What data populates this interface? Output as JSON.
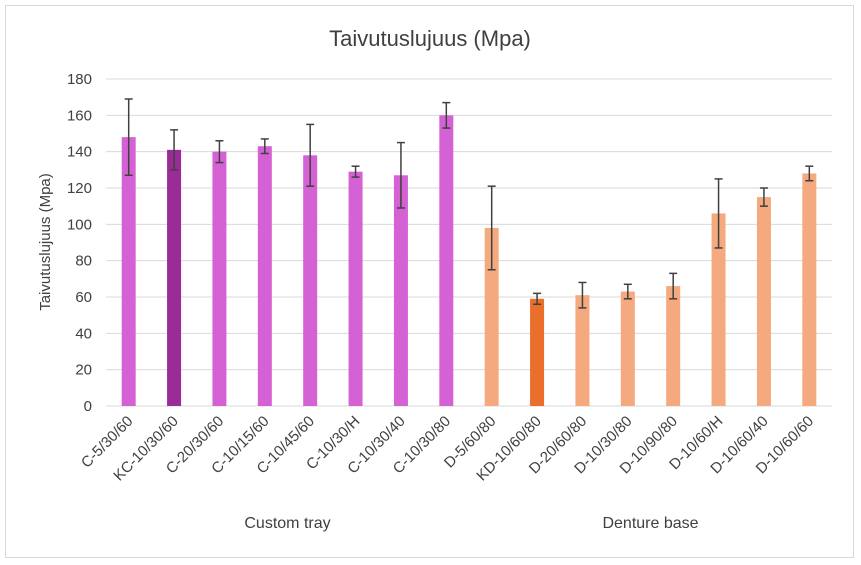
{
  "chart_data": {
    "type": "bar",
    "title": "Taivutuslujuus (Mpa)",
    "ylabel": "Taivutuslujuus (Mpa)",
    "xlabel": "",
    "ylim": [
      0,
      180
    ],
    "yticks": [
      0,
      20,
      40,
      60,
      80,
      100,
      120,
      140,
      160,
      180
    ],
    "grid": true,
    "categories": [
      "C-5/30/60",
      "KC-10/30/60",
      "C-20/30/60",
      "C-10/15/60",
      "C-10/45/60",
      "C-10/30/H",
      "C-10/30/40",
      "C-10/30/80",
      "D-5/60/80",
      "KD-10/60/80",
      "D-20/60/80",
      "D-10/30/80",
      "D-10/90/80",
      "D-10/60/H",
      "D-10/60/40",
      "D-10/60/60"
    ],
    "values": [
      148,
      141,
      140,
      143,
      138,
      129,
      127,
      160,
      98,
      59,
      61,
      63,
      66,
      106,
      115,
      128
    ],
    "error": [
      21,
      11,
      6,
      4,
      17,
      3,
      18,
      7,
      23,
      3,
      7,
      4,
      7,
      19,
      5,
      4
    ],
    "groups": [
      {
        "label": "Custom tray",
        "count": 8
      },
      {
        "label": "Denture base",
        "count": 8
      }
    ],
    "colors": [
      "#d462d4",
      "#9b2b96",
      "#d462d4",
      "#d462d4",
      "#d462d4",
      "#d462d4",
      "#d462d4",
      "#d462d4",
      "#f4a97f",
      "#ea6f2a",
      "#f4a97f",
      "#f4a97f",
      "#f4a97f",
      "#f4a97f",
      "#f4a97f",
      "#f4a97f"
    ],
    "gridColor": "#d9d9d9",
    "errorColor": "#404040"
  }
}
